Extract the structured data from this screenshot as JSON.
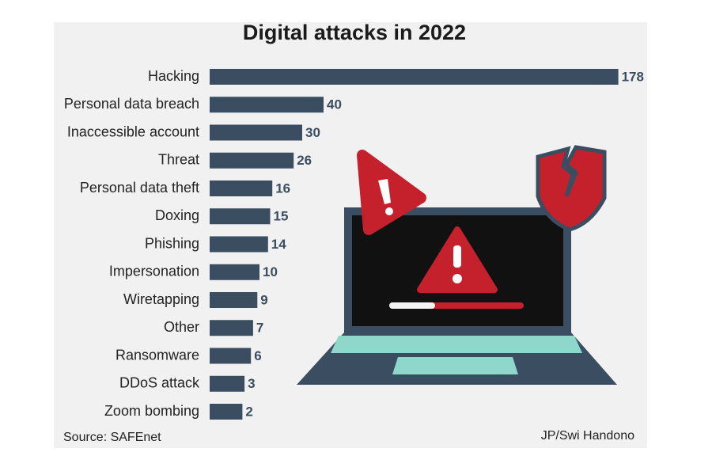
{
  "chart_data": {
    "type": "bar",
    "orientation": "horizontal",
    "title": "Digital attacks in 2022",
    "categories": [
      "Hacking",
      "Personal data breach",
      "Inaccessible account",
      "Threat",
      "Personal data theft",
      "Doxing",
      "Phishing",
      "Impersonation",
      "Wiretapping",
      "Other",
      "Ransomware",
      "DDoS attack",
      "Zoom bombing"
    ],
    "values": [
      178,
      40,
      30,
      26,
      16,
      15,
      14,
      10,
      9,
      7,
      6,
      3,
      2
    ],
    "color": "#3b4d61",
    "source": "Source: SAFEnet",
    "credit": "JP/Swi Handono"
  }
}
